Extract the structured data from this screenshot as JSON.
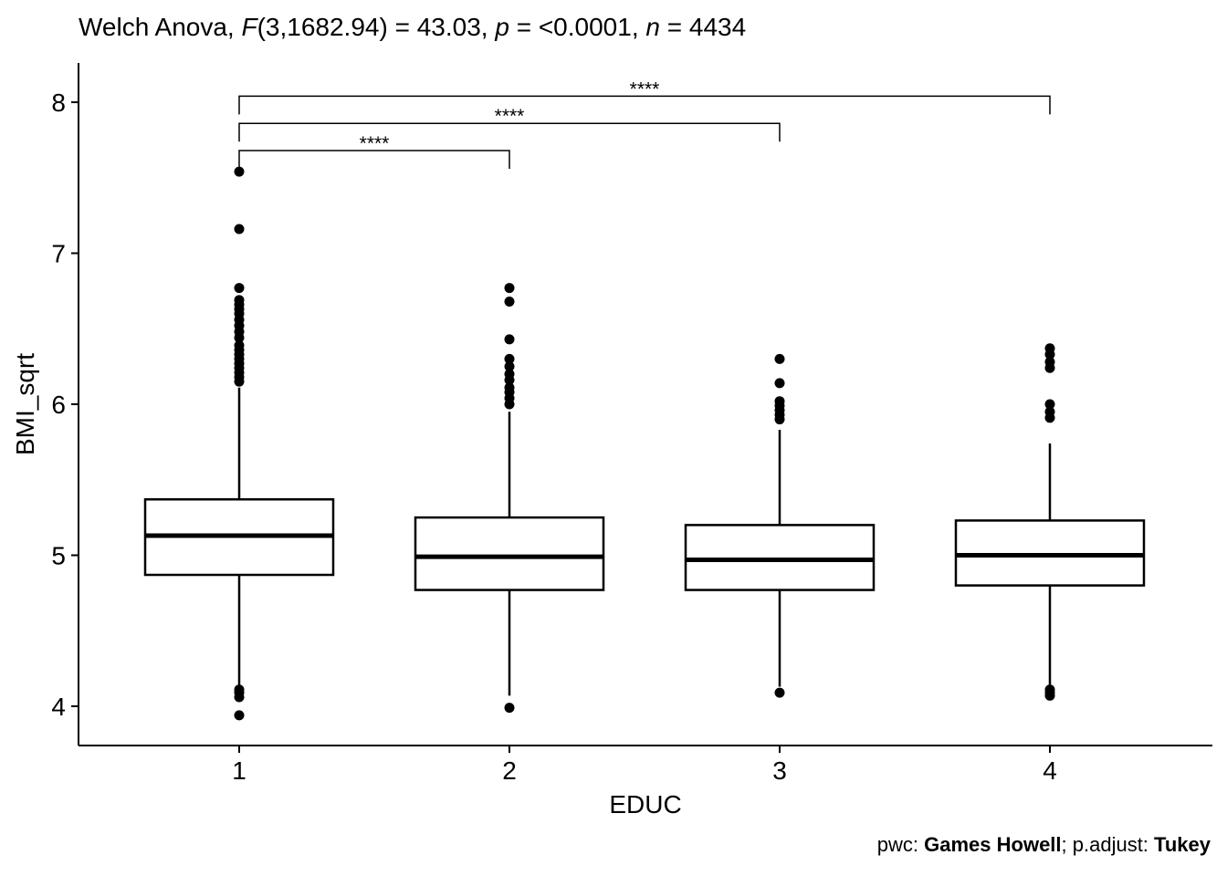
{
  "chart_data": {
    "type": "box",
    "subtitle": {
      "prefix": "Welch Anova, ",
      "F_symbol": "F",
      "F_args": "(3,1682.94) = 43.03, ",
      "p_symbol": "p",
      "p_text": " = <0.0001, ",
      "n_symbol": "n",
      "n_text": " = 4434"
    },
    "caption": {
      "pwc_label": "pwc: ",
      "pwc_value": "Games Howell",
      "separator": "; p.adjust: ",
      "adjust_value": "Tukey"
    },
    "xlabel": "EDUC",
    "ylabel": "BMI_sqrt",
    "categories": [
      "1",
      "2",
      "3",
      "4"
    ],
    "ylim": [
      3.74,
      8.26
    ],
    "yticks": [
      4,
      5,
      6,
      7,
      8
    ],
    "ytick_labels": [
      "4",
      "5",
      "6",
      "7",
      "8"
    ],
    "grid": false,
    "boxes": [
      {
        "category": "1",
        "q1": 4.87,
        "median": 5.13,
        "q3": 5.37,
        "whisker_low": 4.13,
        "whisker_high": 6.11,
        "outliers": [
          7.54,
          7.16,
          6.77,
          6.69,
          6.66,
          6.63,
          6.6,
          6.56,
          6.52,
          6.48,
          6.44,
          6.39,
          6.36,
          6.33,
          6.3,
          6.27,
          6.24,
          6.21,
          6.18,
          6.15,
          4.11,
          4.09,
          4.06,
          3.94
        ]
      },
      {
        "category": "2",
        "q1": 4.77,
        "median": 4.99,
        "q3": 5.25,
        "whisker_low": 4.07,
        "whisker_high": 5.95,
        "outliers": [
          6.77,
          6.68,
          6.43,
          6.3,
          6.25,
          6.2,
          6.16,
          6.11,
          6.08,
          6.04,
          6.0,
          3.99
        ]
      },
      {
        "category": "3",
        "q1": 4.77,
        "median": 4.97,
        "q3": 5.2,
        "whisker_low": 4.13,
        "whisker_high": 5.83,
        "outliers": [
          6.3,
          6.14,
          6.02,
          5.99,
          5.96,
          5.93,
          5.9,
          4.09
        ]
      },
      {
        "category": "4",
        "q1": 4.8,
        "median": 5.0,
        "q3": 5.23,
        "whisker_low": 4.14,
        "whisker_high": 5.74,
        "outliers": [
          6.37,
          6.33,
          6.28,
          6.24,
          6.0,
          5.95,
          5.91,
          4.11,
          4.09,
          4.07
        ]
      }
    ],
    "comparisons": [
      {
        "group1": "1",
        "group2": "2",
        "label": "****",
        "y": 7.68
      },
      {
        "group1": "1",
        "group2": "3",
        "label": "****",
        "y": 7.86
      },
      {
        "group1": "1",
        "group2": "4",
        "label": "****",
        "y": 8.04
      }
    ]
  }
}
